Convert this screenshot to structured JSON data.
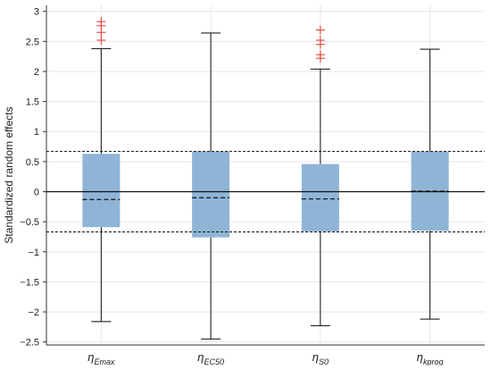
{
  "chart_data": {
    "type": "box",
    "title": "",
    "xlabel": "",
    "ylabel": "Standardized random effects",
    "ylim": [
      -2.55,
      3.1
    ],
    "yticks": [
      3,
      2.5,
      2,
      1.5,
      1,
      0.5,
      0,
      -0.5,
      -1,
      -1.5,
      -2,
      -2.5
    ],
    "ytick_labels": [
      "3",
      "2.5",
      "2",
      "1.5",
      "1",
      "0.5",
      "0",
      "−0.5",
      "−1",
      "−1.5",
      "−2",
      "−2.5"
    ],
    "grid": true,
    "reference_lines": {
      "solid": [
        0
      ],
      "dashed": [
        0.67,
        -0.67
      ]
    },
    "colors": {
      "box_fill": "#8fb4d6",
      "whisker": "#222222",
      "median": "#111111",
      "outlier": "#e0453a",
      "grid": "#e6e6ee",
      "plot_background": "#ffffff"
    },
    "categories": [
      {
        "base": "η",
        "sub": "Emax"
      },
      {
        "base": "η",
        "sub": "EC50"
      },
      {
        "base": "η",
        "sub": "S0"
      },
      {
        "base": "η",
        "sub": "kprog"
      }
    ],
    "boxes": [
      {
        "whisker_low": -2.16,
        "q1": -0.59,
        "median": -0.13,
        "q3": 0.63,
        "whisker_high": 2.38,
        "outliers": [
          2.52,
          2.65,
          2.76,
          2.83
        ]
      },
      {
        "whisker_low": -2.45,
        "q1": -0.76,
        "median": -0.1,
        "q3": 0.67,
        "whisker_high": 2.64,
        "outliers": []
      },
      {
        "whisker_low": -2.23,
        "q1": -0.66,
        "median": -0.12,
        "q3": 0.46,
        "whisker_high": 2.04,
        "outliers": [
          2.22,
          2.28,
          2.45,
          2.52,
          2.69
        ]
      },
      {
        "whisker_low": -2.12,
        "q1": -0.65,
        "median": 0.01,
        "q3": 0.67,
        "whisker_high": 2.37,
        "outliers": []
      }
    ]
  }
}
